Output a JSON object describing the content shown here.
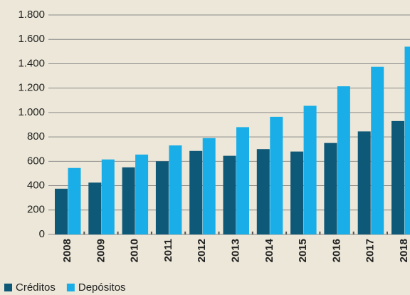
{
  "chart_data": {
    "type": "bar",
    "categories": [
      "2008",
      "2009",
      "2010",
      "2011",
      "2012",
      "2013",
      "2014",
      "2015",
      "2016",
      "2017",
      "2018"
    ],
    "series": [
      {
        "name": "Créditos",
        "color": "#0e5878",
        "values": [
          375,
          425,
          550,
          600,
          685,
          645,
          700,
          680,
          750,
          845,
          930
        ]
      },
      {
        "name": "Depósitos",
        "color": "#1aaee8",
        "values": [
          545,
          615,
          655,
          730,
          790,
          880,
          965,
          1055,
          1215,
          1375,
          1540
        ]
      }
    ],
    "ylim": [
      0,
      1800
    ],
    "yticks": [
      0,
      200,
      400,
      600,
      800,
      {
        "value": 1000,
        "label": "1.000"
      },
      {
        "value": 1200,
        "label": "1.200"
      },
      {
        "value": 1400,
        "label": "1.400"
      },
      {
        "value": 1600,
        "label": "1.600"
      },
      {
        "value": 1800,
        "label": "1.800"
      }
    ],
    "grid": true,
    "legend": "bottom-left"
  }
}
